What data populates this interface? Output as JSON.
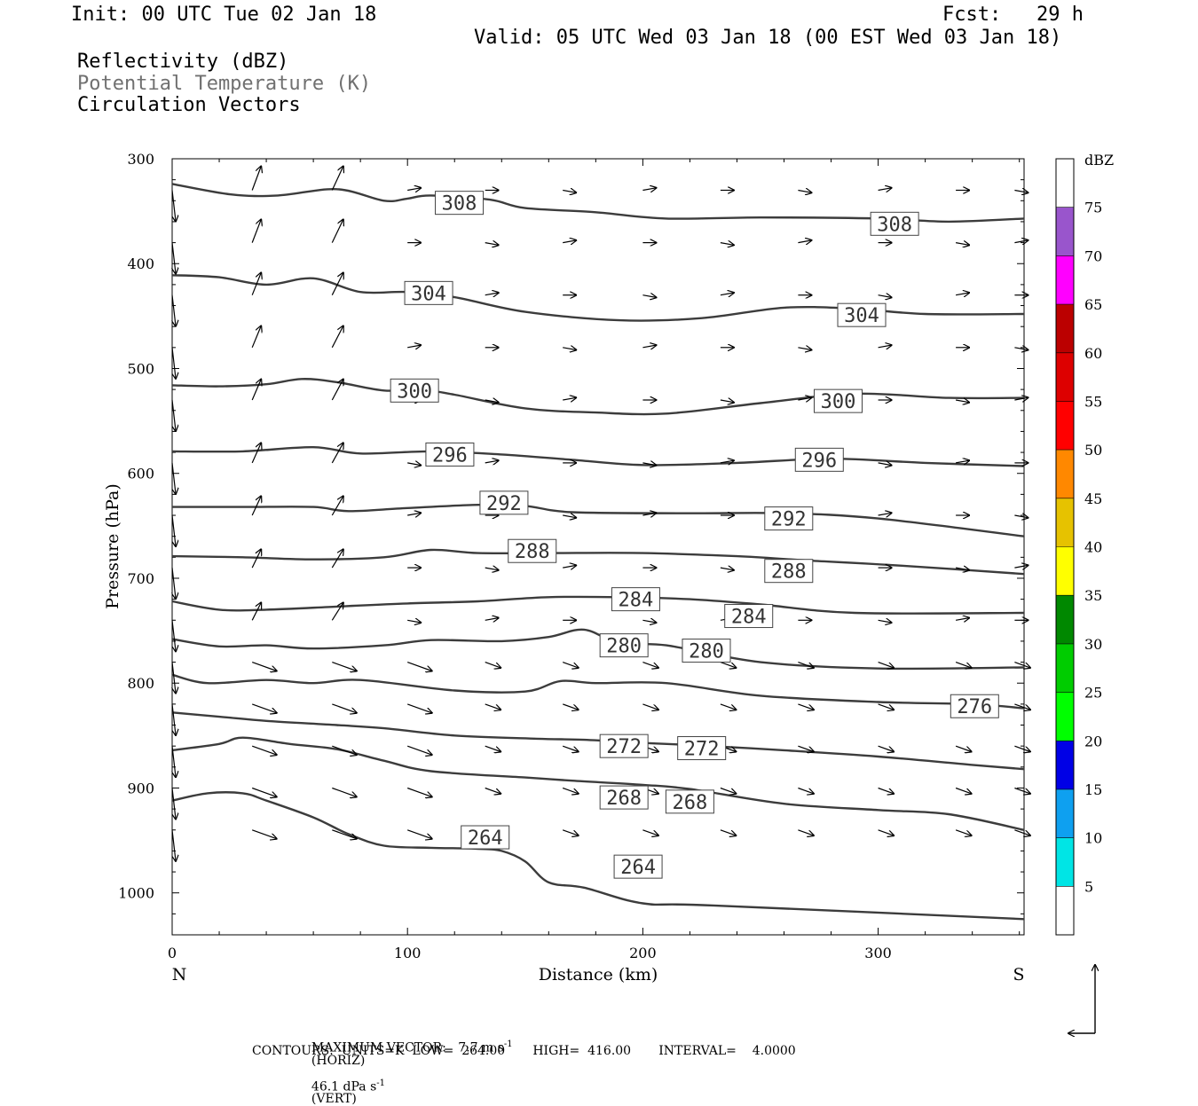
{
  "header": {
    "init": "Init: 00 UTC Tue 02 Jan 18",
    "fcst": "Fcst:   29 h",
    "valid": "Valid: 05 UTC Wed 03 Jan 18 (00 EST Wed 03 Jan 18)",
    "fields": [
      "Reflectivity (dBZ)",
      "Potential Temperature (K)",
      "Circulation Vectors"
    ]
  },
  "colors": {
    "contour": "#3c3c3c",
    "muted_text": "#707070"
  },
  "chart_data": {
    "type": "cross-section",
    "xlabel": "Distance (km)",
    "ylabel": "Pressure (hPa)",
    "xlim": [
      0,
      362
    ],
    "ylim": [
      300,
      1040
    ],
    "x_ticks": [
      0,
      100,
      200,
      300
    ],
    "y_ticks": [
      300,
      400,
      500,
      600,
      700,
      800,
      900,
      1000
    ],
    "x_end_labels": {
      "left": "N",
      "right": "S"
    },
    "colorbar": {
      "title": "dBZ",
      "levels": [
        "5",
        "10",
        "15",
        "20",
        "25",
        "30",
        "35",
        "40",
        "45",
        "50",
        "55",
        "60",
        "65",
        "70",
        "75"
      ],
      "colors": [
        "#ffffff",
        "#00e5e5",
        "#0ea0f0",
        "#0000e6",
        "#00ff00",
        "#00cc00",
        "#008800",
        "#ffff00",
        "#e6c200",
        "#ff8800",
        "#ff0000",
        "#dd0000",
        "#bb0000",
        "#ff00ff",
        "#9955cc",
        "#ffffff"
      ]
    },
    "theta_contours": [
      {
        "level": 308,
        "points": [
          [
            0,
            324
          ],
          [
            25,
            334
          ],
          [
            45,
            335
          ],
          [
            70,
            329
          ],
          [
            90,
            340
          ],
          [
            100,
            338
          ],
          [
            110,
            335
          ],
          [
            135,
            339
          ],
          [
            150,
            347
          ],
          [
            180,
            351
          ],
          [
            210,
            357
          ],
          [
            250,
            356
          ],
          [
            300,
            357
          ],
          [
            330,
            360
          ],
          [
            362,
            357
          ]
        ],
        "labels": [
          [
            122,
            342
          ],
          [
            307,
            362
          ]
        ]
      },
      {
        "level": 304,
        "points": [
          [
            0,
            411
          ],
          [
            20,
            413
          ],
          [
            40,
            420
          ],
          [
            60,
            414
          ],
          [
            80,
            427
          ],
          [
            100,
            427
          ],
          [
            120,
            432
          ],
          [
            150,
            446
          ],
          [
            190,
            454
          ],
          [
            225,
            452
          ],
          [
            260,
            442
          ],
          [
            290,
            443
          ],
          [
            320,
            448
          ],
          [
            362,
            448
          ]
        ],
        "labels": [
          [
            109,
            428
          ],
          [
            293,
            449
          ]
        ]
      },
      {
        "level": 300,
        "points": [
          [
            0,
            516
          ],
          [
            20,
            517
          ],
          [
            40,
            515
          ],
          [
            55,
            510
          ],
          [
            70,
            513
          ],
          [
            90,
            521
          ],
          [
            105,
            520
          ],
          [
            120,
            525
          ],
          [
            150,
            538
          ],
          [
            180,
            542
          ],
          [
            210,
            543
          ],
          [
            250,
            533
          ],
          [
            290,
            524
          ],
          [
            330,
            528
          ],
          [
            362,
            528
          ]
        ],
        "labels": [
          [
            103,
            521
          ],
          [
            283,
            531
          ]
        ]
      },
      {
        "level": 296,
        "points": [
          [
            0,
            579
          ],
          [
            30,
            579
          ],
          [
            60,
            575
          ],
          [
            80,
            581
          ],
          [
            110,
            579
          ],
          [
            140,
            582
          ],
          [
            170,
            587
          ],
          [
            200,
            592
          ],
          [
            240,
            590
          ],
          [
            280,
            586
          ],
          [
            320,
            590
          ],
          [
            362,
            593
          ]
        ],
        "labels": [
          [
            118,
            582
          ],
          [
            275,
            587
          ]
        ]
      },
      {
        "level": 292,
        "points": [
          [
            0,
            632
          ],
          [
            30,
            632
          ],
          [
            60,
            632
          ],
          [
            75,
            636
          ],
          [
            100,
            633
          ],
          [
            130,
            630
          ],
          [
            150,
            631
          ],
          [
            170,
            637
          ],
          [
            220,
            638
          ],
          [
            260,
            638
          ],
          [
            300,
            643
          ],
          [
            362,
            660
          ]
        ],
        "labels": [
          [
            141,
            628
          ],
          [
            262,
            643
          ]
        ]
      },
      {
        "level": 288,
        "points": [
          [
            0,
            679
          ],
          [
            30,
            680
          ],
          [
            60,
            682
          ],
          [
            90,
            680
          ],
          [
            110,
            673
          ],
          [
            130,
            676
          ],
          [
            160,
            676
          ],
          [
            200,
            676
          ],
          [
            240,
            679
          ],
          [
            270,
            683
          ],
          [
            310,
            688
          ],
          [
            362,
            696
          ]
        ],
        "labels": [
          [
            153,
            674
          ],
          [
            262,
            693
          ]
        ]
      },
      {
        "level": 284,
        "points": [
          [
            0,
            722
          ],
          [
            20,
            730
          ],
          [
            40,
            730
          ],
          [
            70,
            727
          ],
          [
            100,
            724
          ],
          [
            130,
            722
          ],
          [
            160,
            718
          ],
          [
            190,
            718
          ],
          [
            220,
            720
          ],
          [
            250,
            725
          ],
          [
            290,
            733
          ],
          [
            362,
            733
          ]
        ],
        "labels": [
          [
            197,
            720
          ],
          [
            245,
            736
          ]
        ]
      },
      {
        "level": 280,
        "points": [
          [
            0,
            758
          ],
          [
            20,
            765
          ],
          [
            40,
            764
          ],
          [
            60,
            767
          ],
          [
            90,
            764
          ],
          [
            110,
            759
          ],
          [
            140,
            760
          ],
          [
            160,
            756
          ],
          [
            175,
            749
          ],
          [
            190,
            762
          ],
          [
            210,
            764
          ],
          [
            250,
            780
          ],
          [
            300,
            786
          ],
          [
            362,
            785
          ]
        ],
        "labels": [
          [
            192,
            764
          ],
          [
            227,
            769
          ]
        ]
      },
      {
        "level": 276,
        "points": [
          [
            0,
            792
          ],
          [
            15,
            800
          ],
          [
            40,
            797
          ],
          [
            60,
            800
          ],
          [
            80,
            797
          ],
          [
            120,
            807
          ],
          [
            150,
            808
          ],
          [
            165,
            798
          ],
          [
            180,
            800
          ],
          [
            210,
            800
          ],
          [
            250,
            812
          ],
          [
            300,
            818
          ],
          [
            340,
            820
          ],
          [
            362,
            824
          ]
        ],
        "labels": [
          [
            341,
            822
          ]
        ]
      },
      {
        "level": 272,
        "points": [
          [
            0,
            828
          ],
          [
            20,
            832
          ],
          [
            40,
            836
          ],
          [
            70,
            840
          ],
          [
            90,
            843
          ],
          [
            120,
            850
          ],
          [
            155,
            853
          ],
          [
            175,
            854
          ],
          [
            200,
            857
          ],
          [
            220,
            859
          ],
          [
            260,
            864
          ],
          [
            300,
            870
          ],
          [
            340,
            878
          ],
          [
            362,
            882
          ]
        ],
        "labels": [
          [
            192,
            860
          ],
          [
            225,
            862
          ]
        ]
      },
      {
        "level": 268,
        "points": [
          [
            0,
            864
          ],
          [
            20,
            858
          ],
          [
            30,
            852
          ],
          [
            50,
            858
          ],
          [
            70,
            863
          ],
          [
            90,
            874
          ],
          [
            110,
            884
          ],
          [
            150,
            890
          ],
          [
            170,
            893
          ],
          [
            200,
            897
          ],
          [
            220,
            901
          ],
          [
            260,
            915
          ],
          [
            300,
            921
          ],
          [
            330,
            925
          ],
          [
            362,
            940
          ]
        ],
        "labels": [
          [
            192,
            909
          ],
          [
            220,
            913
          ]
        ]
      },
      {
        "level": 264,
        "points": [
          [
            0,
            912
          ],
          [
            15,
            905
          ],
          [
            30,
            905
          ],
          [
            40,
            912
          ],
          [
            60,
            928
          ],
          [
            75,
            944
          ],
          [
            90,
            955
          ],
          [
            110,
            957
          ],
          [
            130,
            958
          ],
          [
            140,
            960
          ],
          [
            150,
            970
          ],
          [
            160,
            990
          ],
          [
            175,
            995
          ],
          [
            200,
            1010
          ],
          [
            230,
            1012
          ],
          [
            362,
            1025
          ]
        ],
        "labels": [
          [
            133,
            947
          ],
          [
            198,
            975
          ]
        ]
      }
    ],
    "vectors_note": "circulation vectors (arrows) in the cross-section plane",
    "maximum_vector": "MAXIMUM VECTOR:   7.7 m s",
    "maximum_vector_horiz": "(HORIZ)",
    "maximum_vector_vert": "46.1 dPa s",
    "maximum_vector_vert_unit": "(VERT)",
    "exp": "-1",
    "contours_line": "CONTOURS:  UNITS=K  LOW=  264.00       HIGH=  416.00       INTERVAL=    4.0000"
  }
}
